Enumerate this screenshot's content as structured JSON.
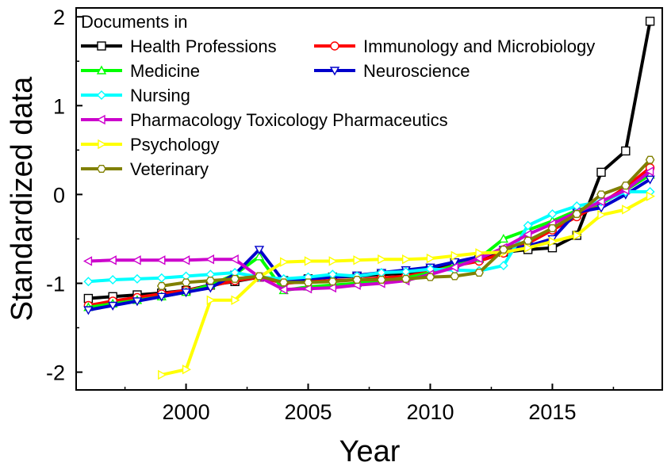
{
  "chart_data": {
    "type": "line",
    "xlabel": "Year",
    "ylabel": "Standardized data",
    "xlim": [
      1995.5,
      2019.5
    ],
    "ylim": [
      -2.2,
      2.1
    ],
    "xticks": [
      2000,
      2005,
      2010,
      2015
    ],
    "yticks": [
      -2,
      -1,
      0,
      1,
      2
    ],
    "grid": false,
    "legend": {
      "title": "Documents in",
      "placement": "top-left"
    },
    "series": [
      {
        "name": "Health Professions",
        "color": "#000000",
        "marker": "square",
        "x": [
          1996,
          1997,
          1998,
          1999,
          2000,
          2001,
          2002,
          2003,
          2004,
          2005,
          2006,
          2007,
          2008,
          2009,
          2010,
          2011,
          2012,
          2013,
          2014,
          2015,
          2016,
          2017,
          2018,
          2019
        ],
        "y": [
          -1.17,
          -1.15,
          -1.13,
          -1.11,
          -1.08,
          -1.02,
          -0.98,
          -0.93,
          -0.97,
          -0.95,
          -0.93,
          -0.92,
          -0.9,
          -0.89,
          -0.85,
          -0.78,
          -0.72,
          -0.65,
          -0.62,
          -0.6,
          -0.46,
          0.25,
          0.49,
          1.95
        ]
      },
      {
        "name": "Immunology and Microbiology",
        "color": "#ff0000",
        "marker": "circle",
        "x": [
          1996,
          1997,
          1998,
          1999,
          2000,
          2001,
          2002,
          2003,
          2004,
          2005,
          2006,
          2007,
          2008,
          2009,
          2010,
          2011,
          2012,
          2013,
          2014,
          2015,
          2016,
          2017,
          2018,
          2019
        ],
        "y": [
          -1.25,
          -1.2,
          -1.16,
          -1.12,
          -1.08,
          -1.03,
          -0.97,
          -0.93,
          -1.0,
          -0.98,
          -0.97,
          -0.96,
          -0.94,
          -0.92,
          -0.87,
          -0.8,
          -0.75,
          -0.66,
          -0.55,
          -0.4,
          -0.25,
          -0.1,
          0.08,
          0.3
        ]
      },
      {
        "name": "Medicine",
        "color": "#00ff00",
        "marker": "triangle-up",
        "x": [
          1996,
          1997,
          1998,
          1999,
          2000,
          2001,
          2002,
          2003,
          2004,
          2005,
          2006,
          2007,
          2008,
          2009,
          2010,
          2011,
          2012,
          2013,
          2014,
          2015,
          2016,
          2017,
          2018,
          2019
        ],
        "y": [
          -1.27,
          -1.23,
          -1.19,
          -1.15,
          -1.1,
          -1.02,
          -0.9,
          -0.7,
          -1.08,
          -1.04,
          -1.02,
          -1.0,
          -0.97,
          -0.94,
          -0.88,
          -0.8,
          -0.72,
          -0.5,
          -0.4,
          -0.3,
          -0.18,
          -0.1,
          0.05,
          0.22
        ]
      },
      {
        "name": "Neuroscience",
        "color": "#0000cc",
        "marker": "triangle-down",
        "x": [
          1996,
          1997,
          1998,
          1999,
          2000,
          2001,
          2002,
          2003,
          2004,
          2005,
          2006,
          2007,
          2008,
          2009,
          2010,
          2011,
          2012,
          2013,
          2014,
          2015,
          2016,
          2017,
          2018,
          2019
        ],
        "y": [
          -1.3,
          -1.25,
          -1.2,
          -1.15,
          -1.1,
          -1.05,
          -0.9,
          -0.62,
          -0.98,
          -0.95,
          -0.93,
          -0.91,
          -0.88,
          -0.85,
          -0.82,
          -0.76,
          -0.7,
          -0.62,
          -0.58,
          -0.5,
          -0.2,
          -0.15,
          0.0,
          0.17
        ]
      },
      {
        "name": "Nursing",
        "color": "#00ffff",
        "marker": "diamond",
        "x": [
          1996,
          1997,
          1998,
          1999,
          2000,
          2001,
          2002,
          2003,
          2004,
          2005,
          2006,
          2007,
          2008,
          2009,
          2010,
          2011,
          2012,
          2013,
          2014,
          2015,
          2016,
          2017,
          2018,
          2019
        ],
        "y": [
          -0.98,
          -0.96,
          -0.95,
          -0.94,
          -0.92,
          -0.9,
          -0.88,
          -0.93,
          -0.95,
          -0.93,
          -0.9,
          -0.92,
          -0.88,
          -0.87,
          -0.84,
          -0.85,
          -0.86,
          -0.8,
          -0.35,
          -0.22,
          -0.13,
          -0.08,
          0.03,
          0.03
        ]
      },
      {
        "name": "Pharmacology Toxicology Pharmaceutics",
        "color": "#cc00cc",
        "marker": "triangle-left",
        "x": [
          1996,
          1997,
          1998,
          1999,
          2000,
          2001,
          2002,
          2003,
          2004,
          2005,
          2006,
          2007,
          2008,
          2009,
          2010,
          2011,
          2012,
          2013,
          2014,
          2015,
          2016,
          2017,
          2018,
          2019
        ],
        "y": [
          -0.75,
          -0.74,
          -0.74,
          -0.74,
          -0.74,
          -0.73,
          -0.73,
          -0.93,
          -1.07,
          -1.06,
          -1.05,
          -1.02,
          -1.0,
          -0.97,
          -0.9,
          -0.82,
          -0.72,
          -0.6,
          -0.45,
          -0.33,
          -0.2,
          -0.08,
          0.05,
          0.26
        ]
      },
      {
        "name": "Psychology",
        "color": "#ffff00",
        "marker": "triangle-right",
        "x": [
          1999,
          2000,
          2001,
          2002,
          2003,
          2004,
          2005,
          2006,
          2007,
          2008,
          2009,
          2010,
          2011,
          2012,
          2013,
          2014,
          2015,
          2016,
          2017,
          2018,
          2019
        ],
        "y": [
          -2.03,
          -1.97,
          -1.19,
          -1.19,
          -0.93,
          -0.76,
          -0.75,
          -0.75,
          -0.74,
          -0.73,
          -0.73,
          -0.72,
          -0.69,
          -0.66,
          -0.65,
          -0.6,
          -0.53,
          -0.46,
          -0.23,
          -0.17,
          -0.02
        ]
      },
      {
        "name": "Veterinary",
        "color": "#808000",
        "marker": "hexagon",
        "x": [
          1999,
          2000,
          2001,
          2002,
          2003,
          2004,
          2005,
          2006,
          2007,
          2008,
          2009,
          2010,
          2011,
          2012,
          2013,
          2014,
          2015,
          2016,
          2017,
          2018,
          2019
        ],
        "y": [
          -1.03,
          -0.99,
          -0.97,
          -0.95,
          -0.92,
          -0.99,
          -0.99,
          -0.98,
          -0.96,
          -0.96,
          -0.95,
          -0.93,
          -0.92,
          -0.88,
          -0.62,
          -0.52,
          -0.38,
          -0.22,
          0.0,
          0.1,
          0.39
        ]
      }
    ]
  }
}
